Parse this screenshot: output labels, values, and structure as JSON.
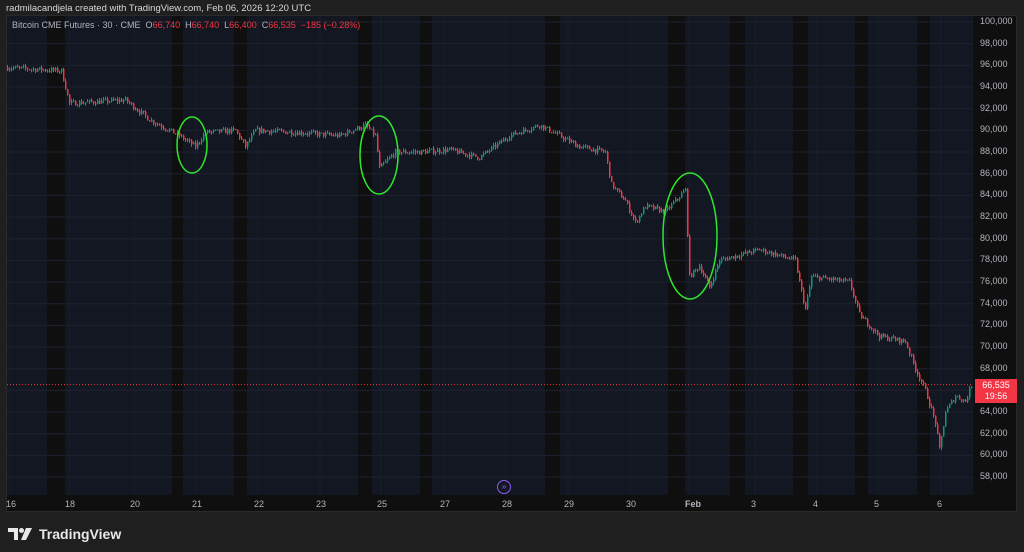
{
  "caption": "radmilacandjela created with TradingView.com, Feb 06, 2026 12:20 UTC",
  "legend": {
    "symbol": "Bitcoin CME Futures · 30 · CME",
    "o_label": "O",
    "o": "66,740",
    "h_label": "H",
    "h": "66,740",
    "l_label": "L",
    "l": "66,400",
    "c_label": "C",
    "c": "66,535",
    "change": "−185 (−0.28%)"
  },
  "price_tag": {
    "price": "66,535",
    "countdown": "19:56"
  },
  "brand": "TradingView",
  "colors": {
    "up": "#089981",
    "down": "#f23645",
    "annotation": "#2ee62e",
    "session_bg": "#131722",
    "offsession_bg": "#0f0f0f"
  },
  "chart_data": {
    "type": "candlestick",
    "y_ticks": [
      "100,000",
      "98,000",
      "96,000",
      "94,000",
      "92,000",
      "90,000",
      "88,000",
      "86,000",
      "84,000",
      "82,000",
      "80,000",
      "78,000",
      "76,000",
      "74,000",
      "72,000",
      "70,000",
      "68,000",
      "66,000",
      "64,000",
      "62,000",
      "60,000",
      "58,000"
    ],
    "ylim": [
      57000,
      100500
    ],
    "x_ticks": [
      "16",
      "18",
      "20",
      "21",
      "22",
      "23",
      "25",
      "27",
      "28",
      "29",
      "30",
      "Feb",
      "3",
      "4",
      "5",
      "6"
    ],
    "last_price": 66535,
    "price_path_bar_price": [
      [
        0,
        95800
      ],
      [
        28,
        95500
      ],
      [
        32,
        92500
      ],
      [
        60,
        92800
      ],
      [
        72,
        91000
      ],
      [
        87,
        89500
      ],
      [
        95,
        88500
      ],
      [
        100,
        89800
      ],
      [
        115,
        90000
      ],
      [
        120,
        88500
      ],
      [
        125,
        90000
      ],
      [
        147,
        89800
      ],
      [
        167,
        89500
      ],
      [
        180,
        90500
      ],
      [
        185,
        89500
      ],
      [
        187,
        86500
      ],
      [
        195,
        88000
      ],
      [
        207,
        88000
      ],
      [
        222,
        88200
      ],
      [
        237,
        87500
      ],
      [
        252,
        89500
      ],
      [
        267,
        90500
      ],
      [
        277,
        89500
      ],
      [
        287,
        88500
      ],
      [
        300,
        88000
      ],
      [
        303,
        85000
      ],
      [
        310,
        83500
      ],
      [
        315,
        81500
      ],
      [
        320,
        83000
      ],
      [
        330,
        82500
      ],
      [
        340,
        84500
      ],
      [
        342,
        76500
      ],
      [
        347,
        77500
      ],
      [
        352,
        75500
      ],
      [
        357,
        78000
      ],
      [
        377,
        79000
      ],
      [
        395,
        78000
      ],
      [
        397,
        76000
      ],
      [
        400,
        73500
      ],
      [
        403,
        76500
      ],
      [
        422,
        76000
      ],
      [
        427,
        73000
      ],
      [
        437,
        71000
      ],
      [
        450,
        70500
      ],
      [
        455,
        68000
      ],
      [
        460,
        66000
      ],
      [
        465,
        63000
      ],
      [
        467,
        60500
      ],
      [
        470,
        64000
      ],
      [
        475,
        65500
      ],
      [
        480,
        65000
      ],
      [
        483,
        66500
      ]
    ],
    "annotations": [
      "ellipse",
      "ellipse",
      "ellipse"
    ]
  }
}
